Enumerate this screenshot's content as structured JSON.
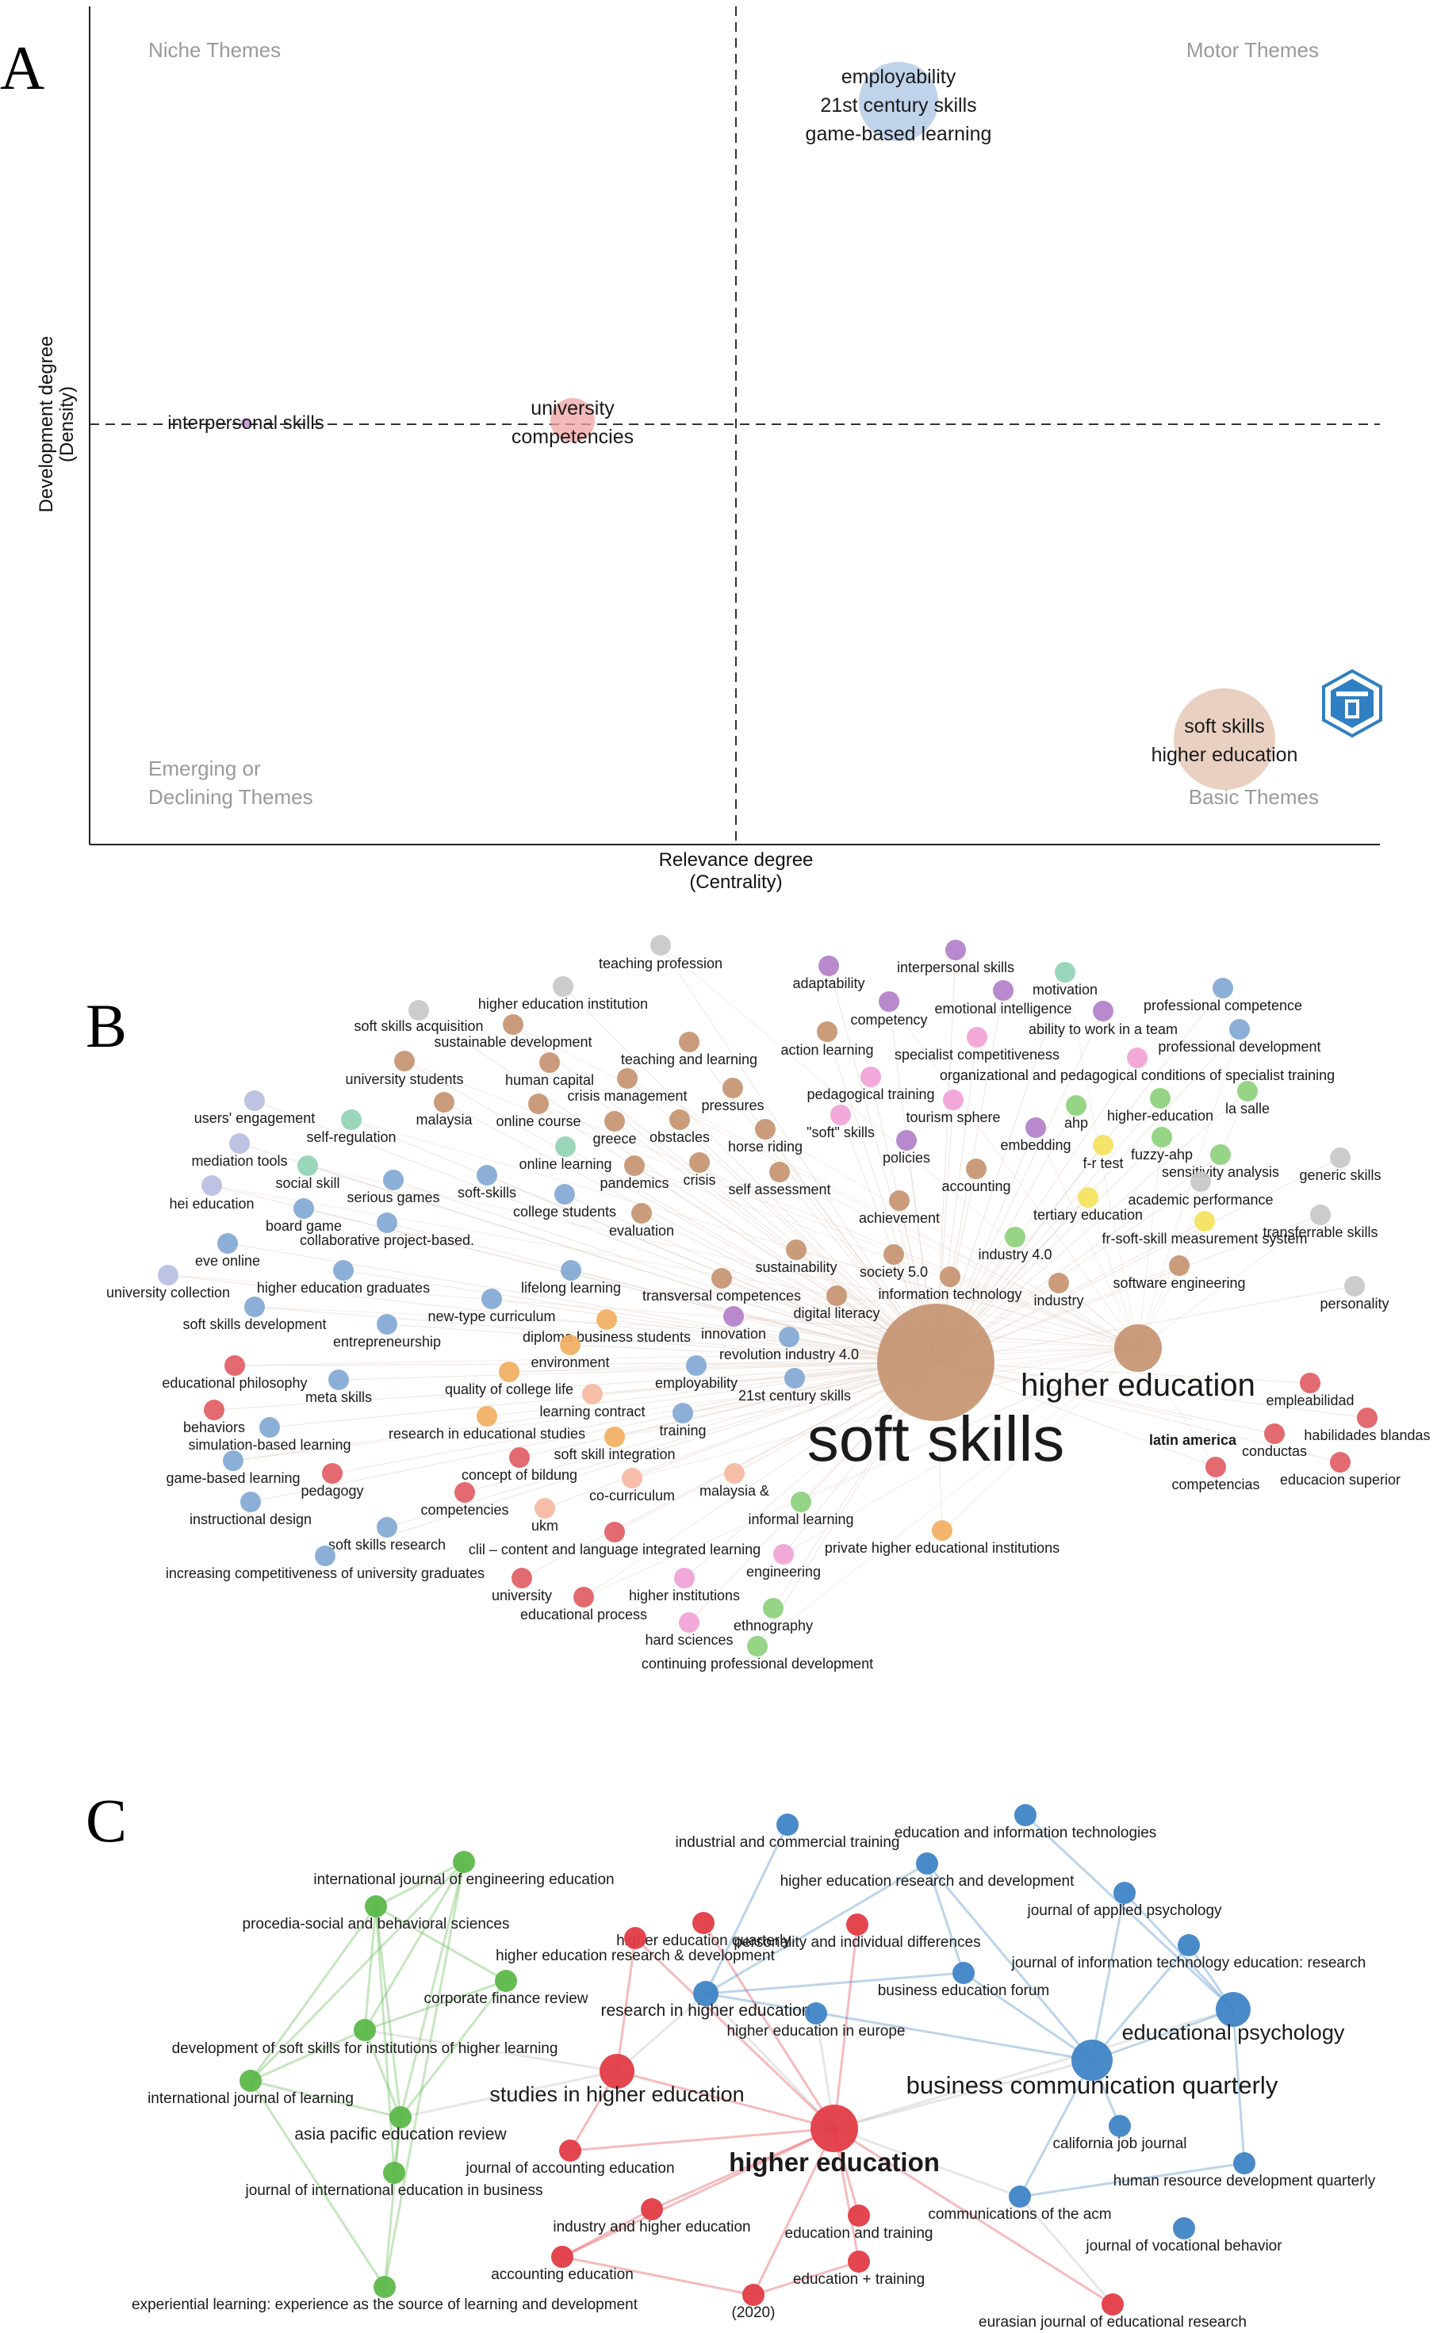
{
  "panels": {
    "a": "A",
    "b": "B",
    "c": "C"
  },
  "thematic_map": {
    "x_label": "Relevance degree",
    "x_sublabel": "(Centrality)",
    "y_label": "Development degree",
    "y_sublabel": "(Density)",
    "quadrants": {
      "niche": "Niche Themes",
      "motor": "Motor Themes",
      "emerging_1": "Emerging or",
      "emerging_2": "Declining Themes",
      "basic": "Basic Themes"
    },
    "themes": [
      {
        "lines": [
          "employability",
          "21st century skills",
          "game-based learning"
        ],
        "color": "#a9c4e4"
      },
      {
        "lines": [
          "interpersonal skills"
        ],
        "color": "#c9a3d9"
      },
      {
        "lines": [
          "university",
          "competencies"
        ],
        "color": "#f0a3a3"
      },
      {
        "lines": [
          "soft skills",
          "higher education"
        ],
        "color": "#e6c8b6"
      }
    ]
  },
  "cooccurrence_network": {
    "colors": {
      "blue": "#7fa6d4",
      "brown": "#c4916e",
      "red": "#e05a60",
      "purple": "#b07cc8",
      "orange": "#f2ad5e",
      "pink": "#f1a0d6",
      "green": "#8bcf79",
      "grey": "#c6c6c6",
      "teal": "#8fd1b4",
      "lavender": "#b7bce0",
      "yellow": "#f3e15a",
      "salmon": "#f5b7a0"
    },
    "nodes": [
      {
        "label": "teaching profession",
        "color": "grey"
      },
      {
        "label": "higher education institution",
        "color": "grey"
      },
      {
        "label": "soft skills acquisition",
        "color": "grey"
      },
      {
        "label": "sustainable development",
        "color": "brown"
      },
      {
        "label": "adaptability",
        "color": "purple"
      },
      {
        "label": "interpersonal skills",
        "color": "purple"
      },
      {
        "label": "motivation",
        "color": "teal"
      },
      {
        "label": "professional competence",
        "color": "blue"
      },
      {
        "label": "emotional intelligence",
        "color": "purple"
      },
      {
        "label": "competency",
        "color": "purple"
      },
      {
        "label": "ability to work in a team",
        "color": "purple"
      },
      {
        "label": "action learning",
        "color": "brown"
      },
      {
        "label": "professional development",
        "color": "blue"
      },
      {
        "label": "specialist competitiveness",
        "color": "pink"
      },
      {
        "label": "teaching and learning",
        "color": "brown"
      },
      {
        "label": "university students",
        "color": "brown"
      },
      {
        "label": "human capital",
        "color": "brown"
      },
      {
        "label": "organizational and pedagogical conditions of specialist training",
        "color": "pink"
      },
      {
        "label": "crisis management",
        "color": "brown"
      },
      {
        "label": "pedagogical training",
        "color": "pink"
      },
      {
        "label": "pressures",
        "color": "brown"
      },
      {
        "label": "la salle",
        "color": "green"
      },
      {
        "label": "users' engagement",
        "color": "lavender"
      },
      {
        "label": "malaysia",
        "color": "brown"
      },
      {
        "label": "online course",
        "color": "brown"
      },
      {
        "label": "higher-education",
        "color": "green"
      },
      {
        "label": "tourism sphere",
        "color": "pink"
      },
      {
        "label": "self-regulation",
        "color": "teal"
      },
      {
        "label": "greece",
        "color": "brown"
      },
      {
        "label": "obstacles",
        "color": "brown"
      },
      {
        "label": "horse riding",
        "color": "brown"
      },
      {
        "label": "\"soft\" skills",
        "color": "pink"
      },
      {
        "label": "ahp",
        "color": "green"
      },
      {
        "label": "embedding",
        "color": "purple"
      },
      {
        "label": "mediation tools",
        "color": "lavender"
      },
      {
        "label": "online learning",
        "color": "teal"
      },
      {
        "label": "fuzzy-ahp",
        "color": "green"
      },
      {
        "label": "generic skills",
        "color": "grey"
      },
      {
        "label": "f-r test",
        "color": "yellow"
      },
      {
        "label": "social skill",
        "color": "teal"
      },
      {
        "label": "policies",
        "color": "purple"
      },
      {
        "label": "sensitivity analysis",
        "color": "green"
      },
      {
        "label": "pandemics",
        "color": "brown"
      },
      {
        "label": "crisis",
        "color": "brown"
      },
      {
        "label": "accounting",
        "color": "brown"
      },
      {
        "label": "hei education",
        "color": "lavender"
      },
      {
        "label": "serious games",
        "color": "blue"
      },
      {
        "label": "soft-skills",
        "color": "blue"
      },
      {
        "label": "self assessment",
        "color": "brown"
      },
      {
        "label": "academic performance",
        "color": "grey"
      },
      {
        "label": "college students",
        "color": "blue"
      },
      {
        "label": "tertiary education",
        "color": "yellow"
      },
      {
        "label": "board game",
        "color": "blue"
      },
      {
        "label": "achievement",
        "color": "brown"
      },
      {
        "label": "transferrable skills",
        "color": "grey"
      },
      {
        "label": "collaborative project-based.",
        "color": "blue"
      },
      {
        "label": "evaluation",
        "color": "brown"
      },
      {
        "label": "fr-soft-skill measurement system",
        "color": "yellow"
      },
      {
        "label": "eve online",
        "color": "blue"
      },
      {
        "label": "industry 4.0",
        "color": "green"
      },
      {
        "label": "sustainability",
        "color": "brown"
      },
      {
        "label": "society 5.0",
        "color": "brown"
      },
      {
        "label": "higher education graduates",
        "color": "blue"
      },
      {
        "label": "university collection",
        "color": "lavender"
      },
      {
        "label": "lifelong learning",
        "color": "blue"
      },
      {
        "label": "software engineering",
        "color": "brown"
      },
      {
        "label": "information technology",
        "color": "brown"
      },
      {
        "label": "personality",
        "color": "grey"
      },
      {
        "label": "transversal competences",
        "color": "brown"
      },
      {
        "label": "industry",
        "color": "brown"
      },
      {
        "label": "new-type curriculum",
        "color": "blue"
      },
      {
        "label": "digital literacy",
        "color": "brown"
      },
      {
        "label": "soft skills development",
        "color": "blue"
      },
      {
        "label": "entrepreneurship",
        "color": "blue"
      },
      {
        "label": "diploma business students",
        "color": "orange"
      },
      {
        "label": "innovation",
        "color": "purple"
      },
      {
        "label": "revolution industry 4.0",
        "color": "blue"
      },
      {
        "label": "environment",
        "color": "orange"
      },
      {
        "label": "educational philosophy",
        "color": "red"
      },
      {
        "label": "employability",
        "color": "blue"
      },
      {
        "label": "meta skills",
        "color": "blue"
      },
      {
        "label": "quality of college life",
        "color": "orange"
      },
      {
        "label": "21st century skills",
        "color": "blue"
      },
      {
        "label": "empleabilidad",
        "color": "red"
      },
      {
        "label": "learning contract",
        "color": "salmon"
      },
      {
        "label": "behaviors",
        "color": "red"
      },
      {
        "label": "habilidades blandas",
        "color": "red"
      },
      {
        "label": "training",
        "color": "blue"
      },
      {
        "label": "research in educational studies",
        "color": "orange"
      },
      {
        "label": "simulation-based learning",
        "color": "blue"
      },
      {
        "label": "soft skill integration",
        "color": "orange"
      },
      {
        "label": "latin america",
        "color": "red"
      },
      {
        "label": "conductas",
        "color": "red"
      },
      {
        "label": "game-based learning",
        "color": "blue"
      },
      {
        "label": "concept of bildung",
        "color": "red"
      },
      {
        "label": "pedagogy",
        "color": "red"
      },
      {
        "label": "competencias",
        "color": "red"
      },
      {
        "label": "educacion superior",
        "color": "red"
      },
      {
        "label": "malaysia &",
        "color": "salmon"
      },
      {
        "label": "co-curriculum",
        "color": "salmon"
      },
      {
        "label": "competencies",
        "color": "red"
      },
      {
        "label": "instructional design",
        "color": "blue"
      },
      {
        "label": "informal learning",
        "color": "green"
      },
      {
        "label": "ukm",
        "color": "salmon"
      },
      {
        "label": "soft skills research",
        "color": "blue"
      },
      {
        "label": "private higher educational institutions",
        "color": "orange"
      },
      {
        "label": "clil – content and language integrated learning",
        "color": "red"
      },
      {
        "label": "increasing competitiveness of university graduates",
        "color": "blue"
      },
      {
        "label": "engineering",
        "color": "pink"
      },
      {
        "label": "university",
        "color": "red"
      },
      {
        "label": "higher institutions",
        "color": "pink"
      },
      {
        "label": "educational process",
        "color": "red"
      },
      {
        "label": "ethnography",
        "color": "green"
      },
      {
        "label": "hard sciences",
        "color": "pink"
      },
      {
        "label": "continuing professional development",
        "color": "green"
      },
      {
        "label": "higher education",
        "color": "brown"
      },
      {
        "label": "soft skills",
        "color": "brown"
      }
    ]
  },
  "source_network": {
    "colors": {
      "red": "#e23c44",
      "blue": "#3f84c6",
      "green": "#5cb84a"
    },
    "nodes": [
      {
        "label": "international journal of engineering education",
        "color": "green"
      },
      {
        "label": "procedia-social and behavioral sciences",
        "color": "green"
      },
      {
        "label": "corporate finance review",
        "color": "green"
      },
      {
        "label": "development of soft skills for institutions of higher learning",
        "color": "green"
      },
      {
        "label": "international journal of learning",
        "color": "green"
      },
      {
        "label": "asia pacific education review",
        "color": "green"
      },
      {
        "label": "journal of international education in business",
        "color": "green"
      },
      {
        "label": "experiential learning: experience as the source of learning and development",
        "color": "green"
      },
      {
        "label": "industrial and commercial training",
        "color": "blue"
      },
      {
        "label": "education and information technologies",
        "color": "blue"
      },
      {
        "label": "higher education research and development",
        "color": "blue"
      },
      {
        "label": "journal of applied psychology",
        "color": "blue"
      },
      {
        "label": "journal of information technology education: research",
        "color": "blue"
      },
      {
        "label": "business education forum",
        "color": "blue"
      },
      {
        "label": "research in higher education",
        "color": "blue"
      },
      {
        "label": "educational psychology",
        "color": "blue"
      },
      {
        "label": "higher education in europe",
        "color": "blue"
      },
      {
        "label": "business communication quarterly",
        "color": "blue"
      },
      {
        "label": "california job journal",
        "color": "blue"
      },
      {
        "label": "human resource development quarterly",
        "color": "blue"
      },
      {
        "label": "communications of the acm",
        "color": "blue"
      },
      {
        "label": "journal of vocational behavior",
        "color": "blue"
      },
      {
        "label": "higher education quarterly",
        "color": "red"
      },
      {
        "label": "personality and individual differences",
        "color": "red"
      },
      {
        "label": "higher education research & development",
        "color": "red"
      },
      {
        "label": "studies in higher education",
        "color": "red"
      },
      {
        "label": "journal of accounting education",
        "color": "red"
      },
      {
        "label": "higher education",
        "color": "red"
      },
      {
        "label": "industry and higher education",
        "color": "red"
      },
      {
        "label": "education and training",
        "color": "red"
      },
      {
        "label": "accounting education",
        "color": "red"
      },
      {
        "label": "education + training",
        "color": "red"
      },
      {
        "label": "(2020)",
        "color": "red"
      },
      {
        "label": "eurasian journal of educational research",
        "color": "red"
      }
    ]
  }
}
